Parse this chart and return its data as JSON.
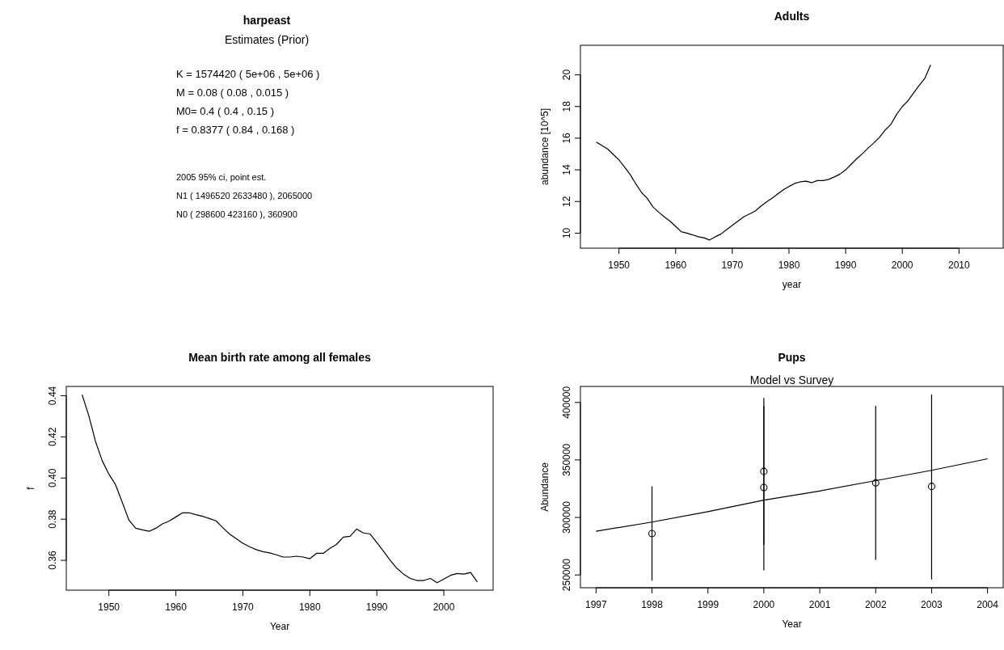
{
  "chart_data": [
    {
      "type": "other",
      "title": "harpeast",
      "subtitle": "Estimates (Prior)",
      "annotations": [
        "K = 1574420 ( 5e+06 , 5e+06 )",
        "M = 0.08 ( 0.08 , 0.015 )",
        "M0= 0.4 ( 0.4 , 0.15 )",
        "f = 0.8377 ( 0.84 , 0.168 )",
        "2005 95% ci, point est.",
        "N1 ( 1496520 2633480 ), 2065000",
        "N0 ( 298600 423160 ), 360900"
      ]
    },
    {
      "type": "line",
      "title": "Adults",
      "xlabel": "year",
      "ylabel": "abundance [10^5]",
      "xlim": [
        1943.2,
        2017.8
      ],
      "ylim": [
        9.05,
        21.87
      ],
      "xticks": [
        1950,
        1960,
        1970,
        1980,
        1990,
        2000,
        2010
      ],
      "yticks": [
        10,
        12,
        14,
        16,
        18,
        20
      ],
      "line_style": "solid",
      "series": [
        {
          "color": "#000000",
          "x": [
            1946,
            1948,
            1950,
            1951,
            1952,
            1953,
            1954,
            1955,
            1956,
            1957,
            1958,
            1959,
            1960,
            1961,
            1962,
            1963,
            1964,
            1965,
            1966,
            1967,
            1968,
            1969,
            1970,
            1971,
            1972,
            1973,
            1974,
            1975,
            1976,
            1977,
            1978,
            1979,
            1980,
            1981,
            1982,
            1983,
            1984,
            1985,
            1986,
            1987,
            1988,
            1989,
            1990,
            1991,
            1992,
            1993,
            1994,
            1995,
            1996,
            1997,
            1998,
            1999,
            2000,
            2001,
            2002,
            2003,
            2004,
            2005
          ],
          "values": [
            15.75,
            15.32,
            14.63,
            14.18,
            13.69,
            13.1,
            12.56,
            12.2,
            11.66,
            11.33,
            11.03,
            10.76,
            10.43,
            10.09,
            10.0,
            9.89,
            9.77,
            9.71,
            9.57,
            9.77,
            9.95,
            10.22,
            10.49,
            10.76,
            11.03,
            11.21,
            11.39,
            11.69,
            11.96,
            12.2,
            12.47,
            12.74,
            12.95,
            13.14,
            13.24,
            13.28,
            13.19,
            13.32,
            13.32,
            13.4,
            13.55,
            13.73,
            14.0,
            14.36,
            14.72,
            15.03,
            15.39,
            15.71,
            16.07,
            16.52,
            16.88,
            17.51,
            18.0,
            18.36,
            18.86,
            19.35,
            19.8,
            20.63
          ]
        }
      ]
    },
    {
      "type": "line",
      "title": "Mean birth rate among all females",
      "xlabel": "Year",
      "ylabel": "f",
      "xlim": [
        1943.64,
        2007.36
      ],
      "ylim": [
        0.3455,
        0.4445
      ],
      "xticks": [
        1950,
        1960,
        1970,
        1980,
        1990,
        2000
      ],
      "yticks": [
        0.36,
        0.38,
        {
          "value": 0.4,
          "label": "0.40"
        },
        0.42,
        0.44
      ],
      "line_style": "solid",
      "series": [
        {
          "color": "#000000",
          "x": [
            1946,
            1947,
            1948,
            1949,
            1950,
            1951,
            1952,
            1953,
            1954,
            1955,
            1956,
            1957,
            1958,
            1959,
            1960,
            1961,
            1962,
            1963,
            1964,
            1965,
            1966,
            1967,
            1968,
            1969,
            1970,
            1971,
            1972,
            1973,
            1974,
            1975,
            1976,
            1977,
            1978,
            1979,
            1980,
            1981,
            1982,
            1983,
            1984,
            1985,
            1986,
            1987,
            1988,
            1989,
            1990,
            1991,
            1992,
            1993,
            1994,
            1995,
            1996,
            1997,
            1998,
            1999,
            2000,
            2001,
            2002,
            2003,
            2004,
            2005
          ],
          "values": [
            0.4405,
            0.4303,
            0.4178,
            0.4084,
            0.4019,
            0.3967,
            0.3881,
            0.3795,
            0.3756,
            0.3748,
            0.3741,
            0.3756,
            0.3777,
            0.3791,
            0.3811,
            0.3831,
            0.3831,
            0.3822,
            0.3814,
            0.3803,
            0.3792,
            0.3759,
            0.3728,
            0.3705,
            0.3683,
            0.3666,
            0.3652,
            0.3642,
            0.3636,
            0.3627,
            0.3616,
            0.3616,
            0.362,
            0.3616,
            0.3608,
            0.3634,
            0.3634,
            0.3658,
            0.3678,
            0.3713,
            0.3717,
            0.3752,
            0.3733,
            0.3728,
            0.3686,
            0.3644,
            0.36,
            0.3561,
            0.3533,
            0.3512,
            0.3502,
            0.3502,
            0.3512,
            0.3491,
            0.3509,
            0.3527,
            0.3536,
            0.3533,
            0.3541,
            0.3495
          ]
        }
      ]
    },
    {
      "type": "scatter",
      "title": "Pups",
      "subtitle": "Model vs Survey",
      "xlabel": "Year",
      "ylabel": "Abundance",
      "xlim": [
        1996.72,
        2004.28
      ],
      "ylim": [
        238850,
        413940
      ],
      "xticks": [
        1997,
        1998,
        1999,
        2000,
        2001,
        2002,
        2003,
        2004
      ],
      "yticks": [
        250000,
        300000,
        350000,
        400000
      ],
      "series": [
        {
          "type": "line",
          "color": "#000000",
          "line_style": "solid",
          "x": [
            1997,
            1998,
            1999,
            2000,
            2001,
            2002,
            2003,
            2004
          ],
          "values": [
            288000,
            296000,
            305000,
            315000,
            323000,
            332000,
            341000,
            351000
          ]
        },
        {
          "type": "scatter",
          "color": "#000000",
          "marker": "circle",
          "x": [
            1998,
            2000,
            2000,
            2002,
            2003
          ],
          "values": [
            286000,
            340000,
            326000,
            330000,
            327000
          ],
          "errors": [
            [
              245000,
              327000
            ],
            [
              276000,
              397000
            ],
            [
              254000,
              404000
            ],
            [
              263000,
              397000
            ],
            [
              246000,
              407000
            ]
          ]
        }
      ]
    }
  ]
}
